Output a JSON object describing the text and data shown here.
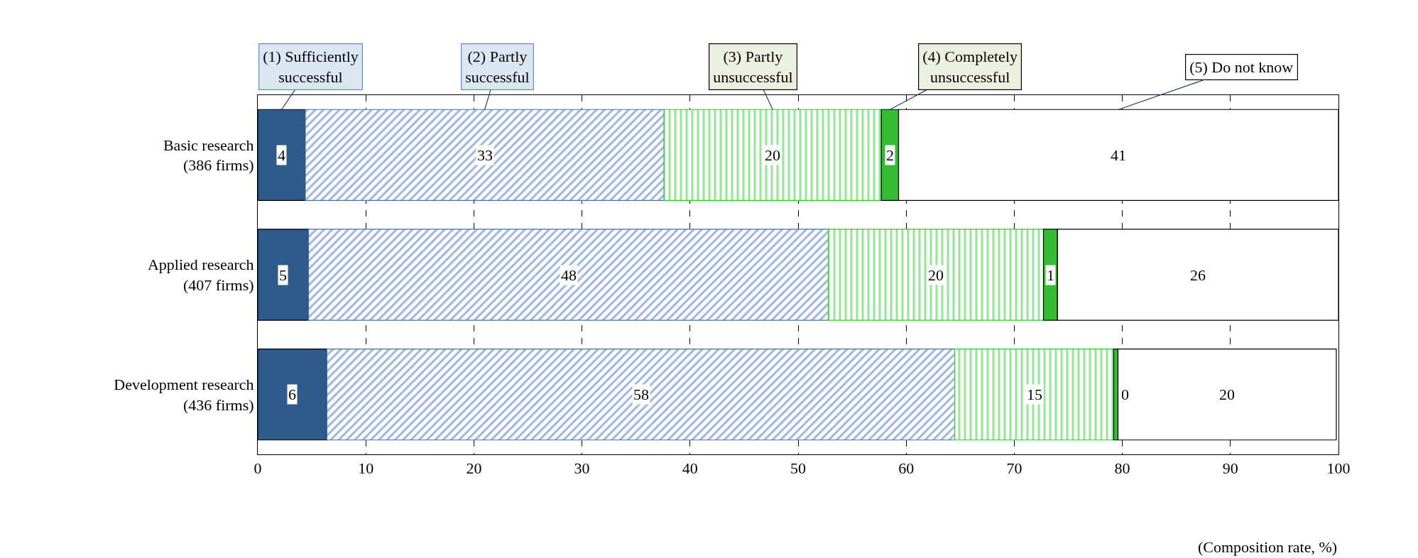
{
  "chart_data": {
    "type": "bar",
    "orientation": "horizontal",
    "stacked": true,
    "categories": [
      "Basic research\n(386 firms)",
      "Applied research\n(407 firms)",
      "Development research\n(436 firms)"
    ],
    "series": [
      {
        "name": "(1) Sufficiently\nsuccessful",
        "color": "#2f5a8c",
        "values": [
          4.4,
          4.7,
          6.4
        ],
        "value_labels": [
          "4",
          "5",
          "6"
        ]
      },
      {
        "name": "(2) Partly\nsuccessful",
        "color": "#4a72b8",
        "values": [
          33.2,
          48.1,
          58.1
        ],
        "value_labels": [
          "33",
          "48",
          "58"
        ]
      },
      {
        "name": "(3) Partly\nunsuccessful",
        "color": "#33cc33",
        "values": [
          20.1,
          19.9,
          14.7
        ],
        "value_labels": [
          "20",
          "20",
          "15"
        ]
      },
      {
        "name": "(4) Completely\nunsuccessful",
        "color": "#33bb33",
        "values": [
          1.6,
          1.3,
          0.4
        ],
        "value_labels": [
          "2",
          "1",
          "0"
        ]
      },
      {
        "name": "(5) Do not know",
        "color": "#ffffff",
        "values": [
          40.7,
          26.0,
          20.2
        ],
        "value_labels": [
          "41",
          "26",
          "20"
        ]
      }
    ],
    "xlim": [
      0,
      100
    ],
    "xticks": [
      0,
      10,
      20,
      30,
      40,
      50,
      60,
      70,
      80,
      90,
      100
    ],
    "xlabel": "(Composition rate, %)",
    "grid": "x"
  }
}
